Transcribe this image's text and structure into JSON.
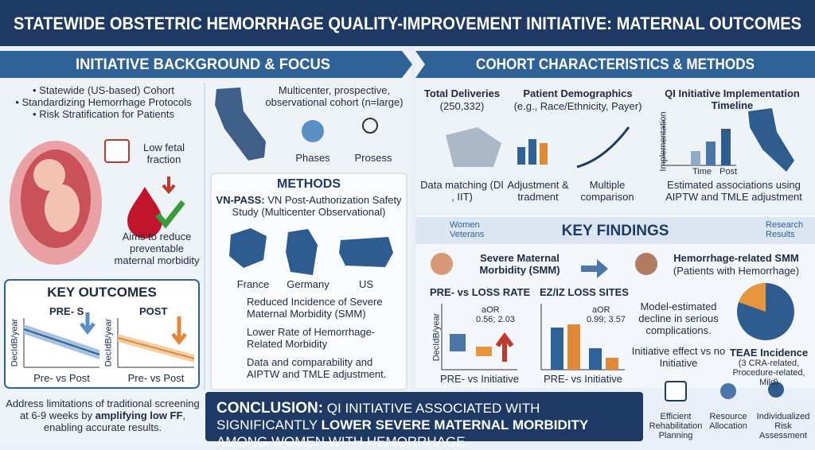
{
  "header": {
    "title": "STATEWIDE OBSTETRIC HEMORRHAGE QUALITY-IMPROVEMENT INITIATIVE: MATERNAL OUTCOMES"
  },
  "background": {
    "title": "INITIATIVE BACKGROUND & FOCUS",
    "bullets": [
      "Statewide (US-based) Cohort",
      "Standardizing Hemorrhage Protocols",
      "Risk Stratification for Patients"
    ],
    "low_ff": "Low fetal fraction",
    "aims": "Aims to reduce preventable maternal morbidity",
    "cohort": "Multicenter, prospective, observational cohort (n=large)",
    "phases": "Phases",
    "prosess": "Prosess"
  },
  "methods": {
    "title": "METHODS",
    "lead": "VN-PASS:",
    "text": "VN Post-Authorization Safety Study (Multicenter Observational)",
    "countries": [
      "France",
      "Germany",
      "US"
    ],
    "items": [
      "Reduced Incidence of Severe Maternal Morbidity (SMM)",
      "Lower Rate of Hemorrhage-Related Morbidity",
      "Data and comparability and AIPTW and TMLE adjustment."
    ]
  },
  "key_outcomes": {
    "title": "KEY OUTCOMES",
    "pre": "PRE- S",
    "post": "POST",
    "y_label": "DecIdB/year",
    "x_label": "Pre- vs Post"
  },
  "address": {
    "before": "Address limitations of traditional screening at 6-9 weeks by",
    "bold": "amplifying low FF",
    "after": ", enabling accurate results."
  },
  "cohort": {
    "title": "COHORT CHARACTERISTICS & METHODS",
    "deliveries": {
      "title": "Total Deliveries",
      "value": "(250,332)",
      "note": "Data matching (DI , IIT)"
    },
    "demographics": {
      "title": "Patient Demographics",
      "sub": "(e.g., Race/Ethnicity, Payer)",
      "note1": "Adjustment & tradment",
      "note2": "Multiple comparison"
    },
    "timeline": {
      "title": "QI Initiative Implementation Timeline",
      "y_label": "Implementation",
      "x1": "Time",
      "x2": "Post",
      "note": "Estimated associations using AIPTW and TMLE adjustment"
    }
  },
  "findings": {
    "badge_left": "Women Veterans",
    "title": "KEY FINDINGS",
    "badge_right": "Research Results",
    "smm": "Severe Maternal Morbidity (SMM)",
    "hem": "Hemorrhage-related SMM",
    "hem_sub": "(Patients with Hemorrhage)",
    "chart1": {
      "title": "PRE- vs LOSS RATE",
      "aor": "aOR",
      "aor_value": "0.56; 2.03",
      "y_label": "DecIdB/year",
      "x_label": "PRE- vs Initiative"
    },
    "chart2": {
      "title": "EZ/IZ LOSS SITES",
      "aor": "aOR",
      "aor_value": "0.99; 3.57",
      "x_label": "PRE- vs Initiative"
    },
    "model": "Model-estimated decline in serious complications.",
    "effect": "Initiative effect vs no Initiative",
    "teae": "TEAE Incidence",
    "teae_sub": "(3 CRA-related, Procedure-related, Mild)"
  },
  "icons": [
    "Efficient Rehabilitation Planning",
    "Resource Allocation",
    "Individualized Risk Assessment"
  ],
  "conclusion": {
    "lead": "CONCLUSION:",
    "before": "QI INITIATIVE ASSOCIATED WITH SIGNIFICANTLY",
    "bold": "LOWER SEVERE MATERNAL MORBIDITY",
    "after": "AMONG WOMEN WITH HEMORRHAGE."
  }
}
